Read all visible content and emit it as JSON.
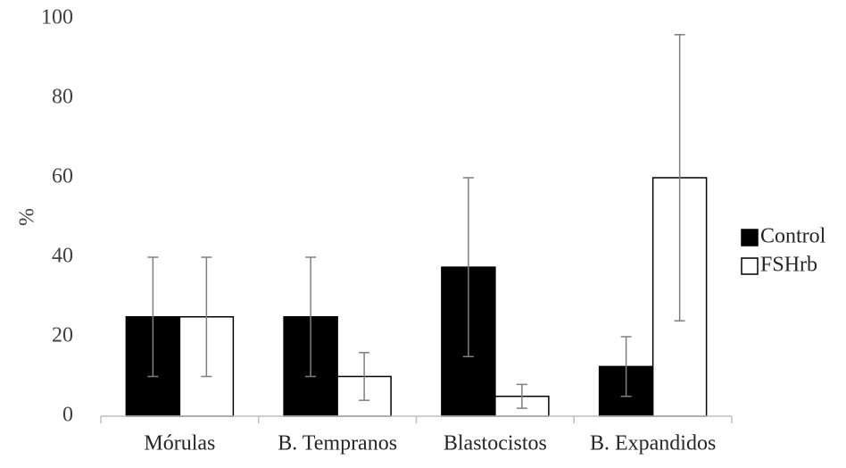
{
  "chart_data": {
    "type": "bar",
    "title": "",
    "xlabel": "",
    "ylabel": "%",
    "ylim": [
      0,
      100
    ],
    "yticks": [
      0,
      20,
      40,
      60,
      80,
      100
    ],
    "grid": false,
    "legend_position": "right",
    "categories": [
      "Mórulas",
      "B. Tempranos",
      "Blastocistos",
      "B. Expandidos"
    ],
    "series": [
      {
        "name": "Control",
        "fill": "#000000",
        "values": [
          25,
          25,
          37.5,
          12.5
        ],
        "error_low": [
          10,
          10,
          15,
          5
        ],
        "error_high": [
          40,
          40,
          60,
          20
        ]
      },
      {
        "name": "FSHrb",
        "fill": "#ffffff",
        "values": [
          25,
          10,
          5,
          60
        ],
        "error_low": [
          10,
          4,
          2,
          24
        ],
        "error_high": [
          40,
          16,
          8,
          96
        ]
      }
    ]
  }
}
